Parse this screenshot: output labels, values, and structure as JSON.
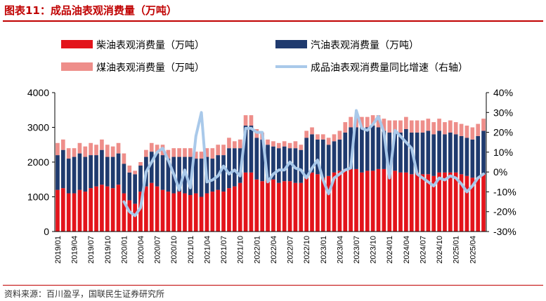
{
  "header": {
    "title": "图表11：成品油表观消费量（万吨）"
  },
  "footer": {
    "source": "资料来源：百川盈孚，国联民生证券研究所"
  },
  "colors": {
    "diesel": "#e3141b",
    "gasoline": "#1f3a6e",
    "kerosene": "#ee8e8a",
    "yoy": "#a9c9ea",
    "brand": "#c00000"
  },
  "chart_data": {
    "type": "bar",
    "stacked": true,
    "categories": [
      "2019/01",
      "2019/02",
      "2019/03",
      "2019/04",
      "2019/05",
      "2019/06",
      "2019/07",
      "2019/08",
      "2019/09",
      "2019/10",
      "2019/11",
      "2019/12",
      "2020/01",
      "2020/02",
      "2020/03",
      "2020/04",
      "2020/05",
      "2020/06",
      "2020/07",
      "2020/08",
      "2020/09",
      "2020/10",
      "2020/11",
      "2020/12",
      "2021/01",
      "2021/02",
      "2021/03",
      "2021/04",
      "2021/05",
      "2021/06",
      "2021/07",
      "2021/08",
      "2021/09",
      "2021/10",
      "2021/11",
      "2021/12",
      "2022/01",
      "2022/02",
      "2022/03",
      "2022/04",
      "2022/05",
      "2022/06",
      "2022/07",
      "2022/08",
      "2022/09",
      "2022/10",
      "2022/11",
      "2022/12",
      "2023/01",
      "2023/02",
      "2023/03",
      "2023/04",
      "2023/05",
      "2023/06",
      "2023/07",
      "2023/08",
      "2023/09",
      "2023/10",
      "2023/11",
      "2023/12",
      "2024/01",
      "2024/02",
      "2024/03",
      "2024/04",
      "2024/05",
      "2024/06",
      "2024/07",
      "2024/08",
      "2024/09",
      "2024/10",
      "2024/11",
      "2024/12",
      "2025/01",
      "2025/02",
      "2025/03",
      "2025/04",
      "2025/05",
      "2025/06"
    ],
    "x_tick_labels": [
      "2019/01",
      "2019/04",
      "2019/07",
      "2019/10",
      "2020/01",
      "2020/04",
      "2020/07",
      "2020/10",
      "2021/01",
      "2021/04",
      "2021/07",
      "2021/10",
      "2022/01",
      "2022/04",
      "2022/07",
      "2022/10",
      "2023/01",
      "2023/04",
      "2023/07",
      "2023/10",
      "2024/01",
      "2024/04",
      "2024/07",
      "2024/10",
      "2025/01",
      "2025/04"
    ],
    "series": [
      {
        "name": "柴油表观消费量（万吨）",
        "axis": "left",
        "type": "bar",
        "values": [
          1200,
          1250,
          1100,
          1100,
          1200,
          1150,
          1250,
          1300,
          1350,
          1300,
          1250,
          1350,
          1100,
          900,
          800,
          1150,
          1300,
          1400,
          1300,
          1200,
          1150,
          1100,
          1150,
          1100,
          1050,
          1100,
          1000,
          1100,
          1150,
          1200,
          1150,
          1250,
          1300,
          1400,
          1700,
          1700,
          1500,
          1450,
          1500,
          1500,
          1400,
          1450,
          1450,
          1400,
          1400,
          1600,
          1700,
          1650,
          1550,
          1600,
          1700,
          1750,
          1800,
          1800,
          1800,
          1700,
          1750,
          1750,
          1800,
          1800,
          1650,
          1750,
          1700,
          1700,
          1650,
          1700,
          1650,
          1650,
          1600,
          1700,
          1700,
          1700,
          1700,
          1650,
          1600,
          1550,
          1550,
          1650
        ]
      },
      {
        "name": "汽油表观消费量（万吨）",
        "axis": "left",
        "type": "bar",
        "values": [
          1000,
          1100,
          1000,
          1050,
          1050,
          1000,
          950,
          900,
          1000,
          850,
          900,
          900,
          850,
          800,
          850,
          750,
          850,
          900,
          950,
          1000,
          950,
          1050,
          1000,
          1050,
          1100,
          1000,
          1100,
          1050,
          950,
          1000,
          1050,
          1150,
          1100,
          1000,
          1350,
          1350,
          1200,
          1200,
          1000,
          950,
          1000,
          1000,
          950,
          1000,
          950,
          1100,
          1100,
          1000,
          1100,
          900,
          900,
          900,
          1050,
          1200,
          1200,
          1300,
          1250,
          1300,
          1200,
          1100,
          1200,
          1100,
          1150,
          1250,
          1200,
          1150,
          1200,
          1250,
          1200,
          1200,
          1100,
          1150,
          1100,
          1100,
          1100,
          1100,
          1200,
          1250
        ]
      },
      {
        "name": "煤油表观消费量（万吨）",
        "axis": "left",
        "type": "bar",
        "values": [
          350,
          300,
          300,
          250,
          300,
          300,
          350,
          300,
          300,
          350,
          300,
          300,
          300,
          200,
          100,
          100,
          200,
          250,
          250,
          300,
          250,
          250,
          250,
          250,
          250,
          200,
          200,
          250,
          300,
          300,
          300,
          300,
          200,
          250,
          300,
          300,
          250,
          200,
          150,
          150,
          150,
          150,
          150,
          200,
          150,
          200,
          200,
          150,
          150,
          200,
          200,
          250,
          300,
          300,
          300,
          300,
          300,
          300,
          350,
          350,
          350,
          350,
          350,
          350,
          350,
          350,
          350,
          350,
          350,
          350,
          350,
          350,
          350,
          350,
          350,
          350,
          350,
          350
        ]
      },
      {
        "name": "成品油表观消费量同比增速（右轴）",
        "axis": "right",
        "type": "line",
        "values": [
          null,
          null,
          null,
          null,
          null,
          null,
          null,
          null,
          null,
          null,
          null,
          null,
          -15,
          -20,
          -22,
          -18,
          0,
          5,
          10,
          12,
          6,
          -1,
          -9,
          1,
          -8,
          18,
          30,
          -5,
          -4,
          -2,
          3,
          -1,
          1,
          -2,
          22,
          22,
          20,
          20,
          -5,
          -1,
          1,
          1,
          5,
          2,
          1,
          -3,
          2,
          6,
          -4,
          -11,
          -3,
          -1,
          1,
          2,
          31,
          22,
          21,
          24,
          28,
          20,
          -3,
          21,
          18,
          15,
          12,
          -1,
          -3,
          -5,
          -7,
          -3,
          -4,
          -2,
          -3,
          -6,
          -10,
          -7,
          -3,
          -1
        ]
      }
    ],
    "y_left": {
      "min": 0,
      "max": 4000,
      "ticks": [
        "0",
        "1000",
        "2000",
        "3000",
        "4000"
      ]
    },
    "y_right": {
      "min": -30,
      "max": 40,
      "ticks": [
        "-30%",
        "-20%",
        "-10%",
        "0%",
        "10%",
        "20%",
        "30%",
        "40%"
      ]
    },
    "grid": false,
    "legend_position": "top"
  }
}
